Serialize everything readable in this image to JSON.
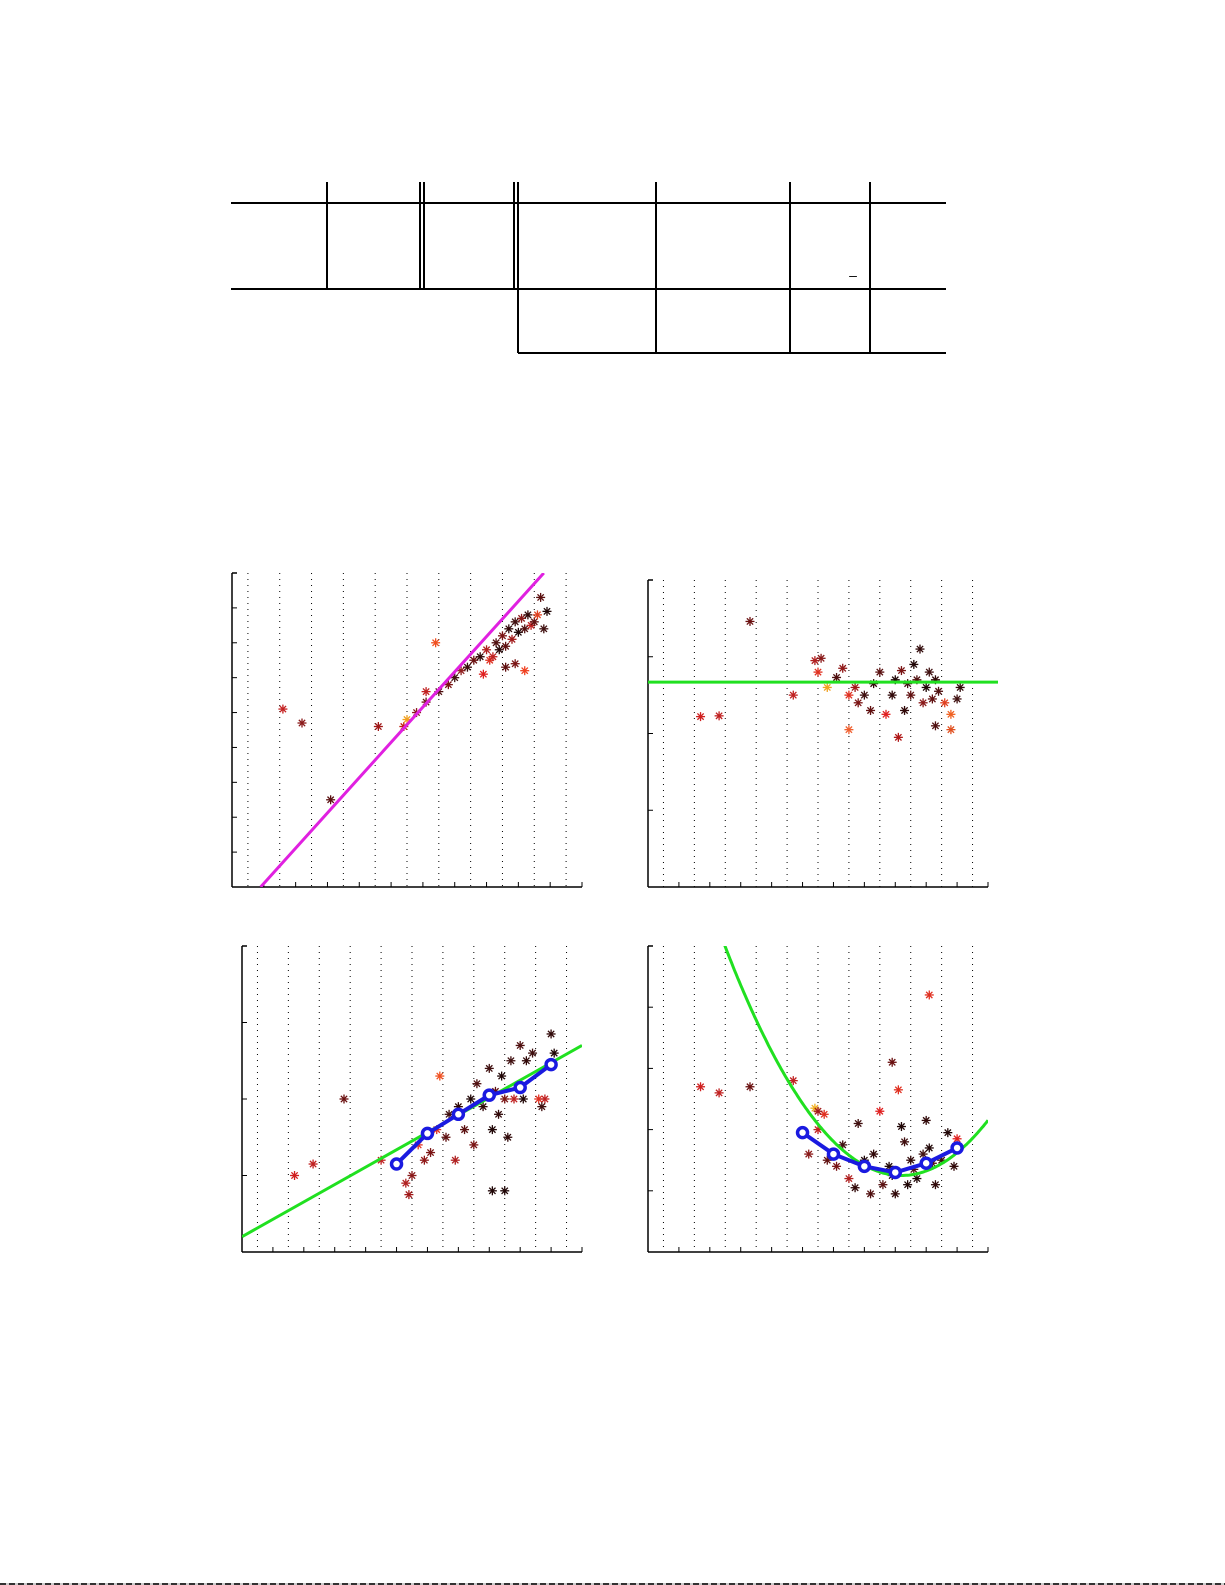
{
  "page": {
    "type": "paper-page",
    "note": ""
  },
  "table": {
    "rows": 3,
    "columns": 8,
    "cells": [
      [
        "",
        "",
        "",
        "",
        "",
        "",
        "",
        ""
      ],
      [
        "",
        "",
        "",
        "",
        "",
        "",
        "–",
        ""
      ],
      [
        "",
        "",
        "",
        "",
        "",
        "",
        "",
        ""
      ]
    ]
  },
  "chart_data": [
    {
      "id": "panel-top-left",
      "type": "scatter",
      "title": "",
      "xlabel": "",
      "ylabel": "",
      "grid": "vertical-dotted",
      "xlim": [
        0,
        11
      ],
      "ylim": [
        0,
        9
      ],
      "fit_line": {
        "kind": "linear",
        "color": "#e020e0",
        "from": [
          0.9,
          0
        ],
        "to": [
          9.8,
          9
        ]
      },
      "points": [
        [
          1.6,
          5.1
        ],
        [
          2.2,
          4.7
        ],
        [
          3.1,
          2.5
        ],
        [
          4.6,
          4.6
        ],
        [
          5.4,
          4.6
        ],
        [
          5.5,
          4.8
        ],
        [
          5.8,
          5.0
        ],
        [
          6.1,
          5.3
        ],
        [
          6.1,
          5.6
        ],
        [
          6.4,
          7.0
        ],
        [
          6.5,
          5.6
        ],
        [
          6.8,
          5.8
        ],
        [
          7.0,
          6.0
        ],
        [
          7.2,
          6.2
        ],
        [
          7.4,
          6.3
        ],
        [
          7.6,
          6.5
        ],
        [
          7.8,
          6.6
        ],
        [
          8.0,
          6.8
        ],
        [
          8.1,
          6.5
        ],
        [
          8.3,
          7.0
        ],
        [
          8.4,
          6.8
        ],
        [
          8.5,
          7.2
        ],
        [
          8.6,
          6.9
        ],
        [
          8.7,
          7.4
        ],
        [
          8.8,
          7.1
        ],
        [
          8.9,
          7.6
        ],
        [
          9.0,
          7.3
        ],
        [
          9.1,
          7.7
        ],
        [
          9.2,
          7.4
        ],
        [
          9.3,
          7.8
        ],
        [
          9.4,
          7.5
        ],
        [
          9.5,
          7.6
        ],
        [
          9.6,
          7.8
        ],
        [
          9.7,
          8.3
        ],
        [
          9.8,
          7.4
        ],
        [
          9.9,
          7.9
        ],
        [
          8.2,
          6.6
        ],
        [
          9.2,
          6.2
        ],
        [
          8.9,
          6.4
        ],
        [
          7.9,
          6.1
        ],
        [
          8.6,
          6.3
        ]
      ],
      "point_colors": [
        "#c42020",
        "#8a1a1a",
        "#5a1010",
        "#a01818",
        "#c02010",
        "#f0a020",
        "#8a1a1a",
        "#6a1010",
        "#c02020",
        "#f05020",
        "#501010",
        "#7a1414",
        "#401010",
        "#902020",
        "#3a0c0c",
        "#6a1010",
        "#300808",
        "#b02020",
        "#e03020",
        "#501010",
        "#2a0808",
        "#7a1414",
        "#601010",
        "#300808",
        "#a01818",
        "#401010",
        "#200606",
        "#8a1a1a",
        "#501010",
        "#300808",
        "#c02020",
        "#601010",
        "#e04020",
        "#5a1010",
        "#401010",
        "#200606",
        "#c02020",
        "#f04020",
        "#7a1414",
        "#e02020",
        "#601010"
      ]
    },
    {
      "id": "panel-top-right",
      "type": "scatter",
      "title": "",
      "xlabel": "",
      "ylabel": "",
      "grid": "vertical-dotted",
      "xlim": [
        0,
        11
      ],
      "ylim": [
        0,
        4
      ],
      "fit_line": {
        "kind": "horizontal",
        "color": "#20e020",
        "y": 2.67
      },
      "points": [
        [
          1.7,
          2.22
        ],
        [
          2.3,
          2.23
        ],
        [
          3.3,
          3.46
        ],
        [
          4.7,
          2.5
        ],
        [
          5.4,
          2.95
        ],
        [
          5.6,
          2.98
        ],
        [
          5.5,
          2.8
        ],
        [
          5.8,
          2.6
        ],
        [
          6.1,
          2.73
        ],
        [
          6.3,
          2.85
        ],
        [
          6.5,
          2.5
        ],
        [
          6.5,
          2.05
        ],
        [
          6.8,
          2.4
        ],
        [
          7.0,
          2.5
        ],
        [
          7.3,
          2.65
        ],
        [
          7.5,
          2.8
        ],
        [
          7.7,
          2.25
        ],
        [
          7.9,
          2.5
        ],
        [
          8.0,
          2.7
        ],
        [
          8.2,
          2.82
        ],
        [
          8.4,
          2.65
        ],
        [
          8.5,
          2.5
        ],
        [
          8.6,
          2.9
        ],
        [
          8.7,
          2.7
        ],
        [
          8.8,
          3.1
        ],
        [
          8.9,
          2.4
        ],
        [
          9.0,
          2.6
        ],
        [
          9.1,
          2.8
        ],
        [
          9.2,
          2.45
        ],
        [
          9.3,
          2.7
        ],
        [
          9.4,
          2.55
        ],
        [
          9.6,
          2.4
        ],
        [
          9.8,
          2.25
        ],
        [
          9.8,
          2.05
        ],
        [
          10.0,
          2.45
        ],
        [
          10.1,
          2.6
        ],
        [
          8.1,
          1.95
        ],
        [
          9.3,
          2.1
        ],
        [
          7.2,
          2.3
        ],
        [
          6.7,
          2.6
        ],
        [
          8.3,
          2.3
        ]
      ],
      "point_colors": [
        "#d02020",
        "#c02020",
        "#6a1010",
        "#c02020",
        "#b02020",
        "#8a1a1a",
        "#e03020",
        "#f0a020",
        "#501010",
        "#901818",
        "#e03020",
        "#f06030",
        "#7a1414",
        "#401010",
        "#300808",
        "#5a1010",
        "#e02020",
        "#300808",
        "#200606",
        "#7a1414",
        "#401010",
        "#601010",
        "#200606",
        "#501010",
        "#300808",
        "#8a1a1a",
        "#200606",
        "#401010",
        "#601010",
        "#300808",
        "#501010",
        "#e04020",
        "#f06020",
        "#e05020",
        "#401010",
        "#300808",
        "#b01818",
        "#501010",
        "#601010",
        "#a01818",
        "#300808"
      ]
    },
    {
      "id": "panel-bottom-left",
      "type": "scatter",
      "title": "",
      "xlabel": "",
      "ylabel": "",
      "grid": "vertical-dotted",
      "xlim": [
        0,
        11
      ],
      "ylim": [
        0,
        4
      ],
      "fit_line": {
        "kind": "linear",
        "color": "#20e020",
        "from": [
          0,
          0.2
        ],
        "to": [
          11,
          2.7
        ]
      },
      "binned_means": {
        "color": "#1a1ae0",
        "x": [
          5.0,
          6.0,
          7.0,
          8.0,
          9.0,
          10.0
        ],
        "y": [
          1.15,
          1.55,
          1.8,
          2.05,
          2.15,
          2.45
        ]
      },
      "points": [
        [
          1.7,
          1.0
        ],
        [
          2.3,
          1.15
        ],
        [
          3.3,
          2.0
        ],
        [
          4.5,
          1.2
        ],
        [
          5.3,
          0.9
        ],
        [
          5.4,
          0.75
        ],
        [
          5.5,
          1.0
        ],
        [
          5.7,
          1.4
        ],
        [
          5.9,
          1.2
        ],
        [
          6.1,
          1.3
        ],
        [
          6.3,
          1.6
        ],
        [
          6.4,
          2.3
        ],
        [
          6.6,
          1.5
        ],
        [
          6.7,
          1.8
        ],
        [
          6.9,
          1.2
        ],
        [
          7.0,
          1.9
        ],
        [
          7.2,
          1.6
        ],
        [
          7.4,
          2.0
        ],
        [
          7.5,
          1.4
        ],
        [
          7.6,
          2.2
        ],
        [
          7.8,
          1.9
        ],
        [
          8.0,
          2.4
        ],
        [
          8.1,
          1.6
        ],
        [
          8.2,
          2.1
        ],
        [
          8.3,
          1.8
        ],
        [
          8.4,
          2.3
        ],
        [
          8.5,
          2.0
        ],
        [
          8.6,
          1.5
        ],
        [
          8.7,
          2.5
        ],
        [
          8.8,
          2.0
        ],
        [
          9.0,
          2.7
        ],
        [
          9.1,
          2.0
        ],
        [
          9.2,
          2.5
        ],
        [
          9.4,
          2.6
        ],
        [
          9.6,
          2.0
        ],
        [
          9.8,
          2.0
        ],
        [
          10.0,
          2.85
        ],
        [
          10.1,
          2.6
        ],
        [
          8.1,
          0.8
        ],
        [
          8.5,
          0.8
        ],
        [
          9.7,
          1.9
        ]
      ],
      "point_colors": [
        "#d02020",
        "#c02020",
        "#6a1010",
        "#c02020",
        "#b02020",
        "#a01818",
        "#8a1a1a",
        "#e03020",
        "#901818",
        "#7a1414",
        "#e03020",
        "#f05020",
        "#601010",
        "#401010",
        "#b02020",
        "#300808",
        "#5a1010",
        "#200606",
        "#7a1414",
        "#501010",
        "#300808",
        "#401010",
        "#200606",
        "#601010",
        "#300808",
        "#200606",
        "#7a1414",
        "#300808",
        "#401010",
        "#c02020",
        "#501010",
        "#200606",
        "#300808",
        "#401010",
        "#e03020",
        "#c02020",
        "#300808",
        "#200606",
        "#200606",
        "#200606",
        "#401010"
      ]
    },
    {
      "id": "panel-bottom-right",
      "type": "scatter",
      "title": "",
      "xlabel": "",
      "ylabel": "",
      "grid": "vertical-dotted",
      "xlim": [
        0,
        11
      ],
      "ylim": [
        0,
        5
      ],
      "fit_line": {
        "kind": "quadratic",
        "color": "#20e020",
        "vertex": [
          8.2,
          1.25
        ],
        "a": 0.115
      },
      "binned_means": {
        "color": "#1a1ae0",
        "x": [
          5.0,
          6.0,
          7.0,
          8.0,
          9.0,
          10.0
        ],
        "y": [
          1.95,
          1.6,
          1.4,
          1.3,
          1.45,
          1.7
        ]
      },
      "points": [
        [
          1.7,
          2.7
        ],
        [
          2.3,
          2.6
        ],
        [
          3.3,
          2.7
        ],
        [
          4.7,
          2.8
        ],
        [
          5.4,
          2.35
        ],
        [
          5.7,
          2.25
        ],
        [
          5.5,
          2.0
        ],
        [
          5.2,
          1.6
        ],
        [
          5.8,
          1.5
        ],
        [
          6.1,
          1.4
        ],
        [
          6.3,
          1.75
        ],
        [
          6.5,
          1.2
        ],
        [
          6.7,
          1.05
        ],
        [
          6.8,
          2.1
        ],
        [
          7.0,
          1.5
        ],
        [
          7.2,
          0.95
        ],
        [
          7.3,
          1.6
        ],
        [
          7.5,
          2.3
        ],
        [
          7.6,
          1.1
        ],
        [
          7.8,
          1.4
        ],
        [
          7.9,
          3.1
        ],
        [
          8.0,
          0.95
        ],
        [
          8.1,
          2.65
        ],
        [
          8.2,
          2.05
        ],
        [
          8.3,
          1.8
        ],
        [
          8.4,
          1.1
        ],
        [
          8.5,
          1.5
        ],
        [
          8.6,
          1.35
        ],
        [
          8.7,
          1.2
        ],
        [
          8.9,
          1.6
        ],
        [
          9.0,
          2.15
        ],
        [
          9.1,
          1.7
        ],
        [
          9.2,
          1.45
        ],
        [
          9.3,
          1.1
        ],
        [
          9.5,
          1.5
        ],
        [
          9.7,
          1.95
        ],
        [
          9.9,
          1.4
        ],
        [
          10.0,
          1.85
        ],
        [
          9.1,
          4.2
        ],
        [
          5.5,
          2.3
        ],
        [
          7.9,
          1.25
        ]
      ],
      "point_colors": [
        "#d02020",
        "#c02020",
        "#6a1010",
        "#c02020",
        "#f0b020",
        "#e03020",
        "#c02020",
        "#8a1a1a",
        "#601010",
        "#7a1414",
        "#401010",
        "#b02020",
        "#300808",
        "#401010",
        "#200606",
        "#501010",
        "#300808",
        "#e02020",
        "#5a1010",
        "#200606",
        "#6a1010",
        "#300808",
        "#e03020",
        "#200606",
        "#401010",
        "#200606",
        "#300808",
        "#501010",
        "#200606",
        "#401010",
        "#300808",
        "#200606",
        "#501010",
        "#300808",
        "#401010",
        "#200606",
        "#300808",
        "#e02020",
        "#e03020",
        "#a01818",
        "#200606"
      ]
    }
  ]
}
